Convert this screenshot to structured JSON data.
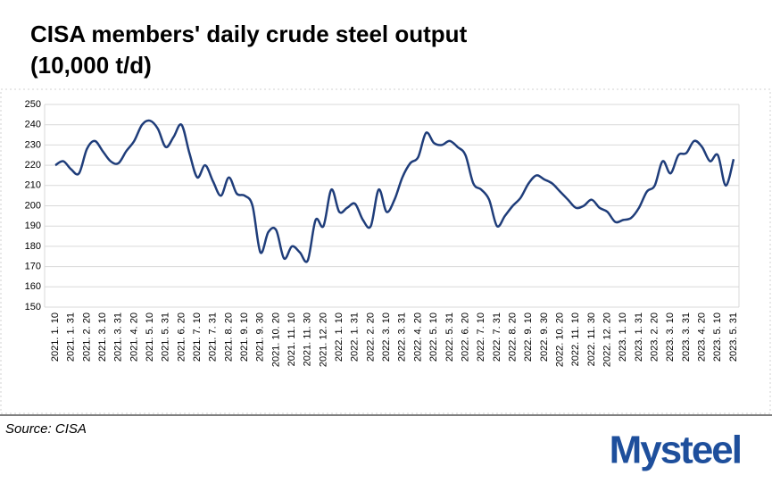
{
  "chart_data": {
    "type": "line",
    "title_lines": [
      "CISA members' daily crude steel output",
      "(10,000 t/d)"
    ],
    "categories": [
      "2021. 1. 10",
      null,
      "2021. 1. 31",
      null,
      "2021. 2. 20",
      null,
      "2021. 3. 10",
      null,
      "2021. 3. 31",
      null,
      "2021. 4. 20",
      null,
      "2021. 5. 10",
      null,
      "2021. 5. 31",
      null,
      "2021. 6. 20",
      null,
      "2021. 7. 10",
      null,
      "2021. 7. 31",
      null,
      "2021. 8. 20",
      null,
      "2021. 9. 10",
      null,
      "2021. 9. 30",
      null,
      "2021. 10. 20",
      null,
      "2021. 11. 10",
      null,
      "2021. 11. 30",
      null,
      "2021. 12. 20",
      null,
      "2022. 1. 10",
      null,
      "2022. 1. 31",
      null,
      "2022. 2. 20",
      null,
      "2022. 3. 10",
      null,
      "2022. 3. 31",
      null,
      "2022. 4. 20",
      null,
      "2022. 5. 10",
      null,
      "2022. 5. 31",
      null,
      "2022. 6. 20",
      null,
      "2022. 7. 10",
      null,
      "2022. 7. 31",
      null,
      "2022. 8. 20",
      null,
      "2022. 9. 10",
      null,
      "2022. 9. 30",
      null,
      "2022. 10. 20",
      null,
      "2022. 11. 10",
      null,
      "2022. 11. 30",
      null,
      "2022. 12. 20",
      null,
      "2023. 1. 10",
      null,
      "2023. 1. 31",
      null,
      "2023. 2. 20",
      null,
      "2023. 3. 10",
      null,
      "2023. 3. 31",
      null,
      "2023. 4. 20",
      null,
      "2023. 5. 10",
      null,
      "2023. 5. 31"
    ],
    "values": [
      220,
      222,
      218,
      216,
      228,
      232,
      227,
      222,
      221,
      227,
      232,
      240,
      242,
      238,
      229,
      234,
      240,
      226,
      214,
      220,
      212,
      205,
      214,
      206,
      205,
      200,
      177,
      187,
      188,
      174,
      180,
      177,
      173,
      193,
      190,
      208,
      197,
      199,
      201,
      193,
      190,
      208,
      197,
      203,
      214,
      221,
      224,
      236,
      231,
      230,
      232,
      229,
      225,
      211,
      208,
      203,
      190,
      195,
      200,
      204,
      211,
      215,
      213,
      211,
      207,
      203,
      199,
      200,
      203,
      199,
      197,
      192,
      193,
      194,
      199,
      207,
      210,
      222,
      216,
      225,
      226,
      232,
      229,
      222,
      225,
      210,
      223
    ],
    "color": "#1f3d7a",
    "ylim": [
      150,
      250
    ],
    "yticks": [
      150,
      160,
      170,
      180,
      190,
      200,
      210,
      220,
      230,
      240,
      250
    ],
    "grid": true
  },
  "footer": {
    "source": "Source: CISA",
    "logo": "Mysteel"
  }
}
